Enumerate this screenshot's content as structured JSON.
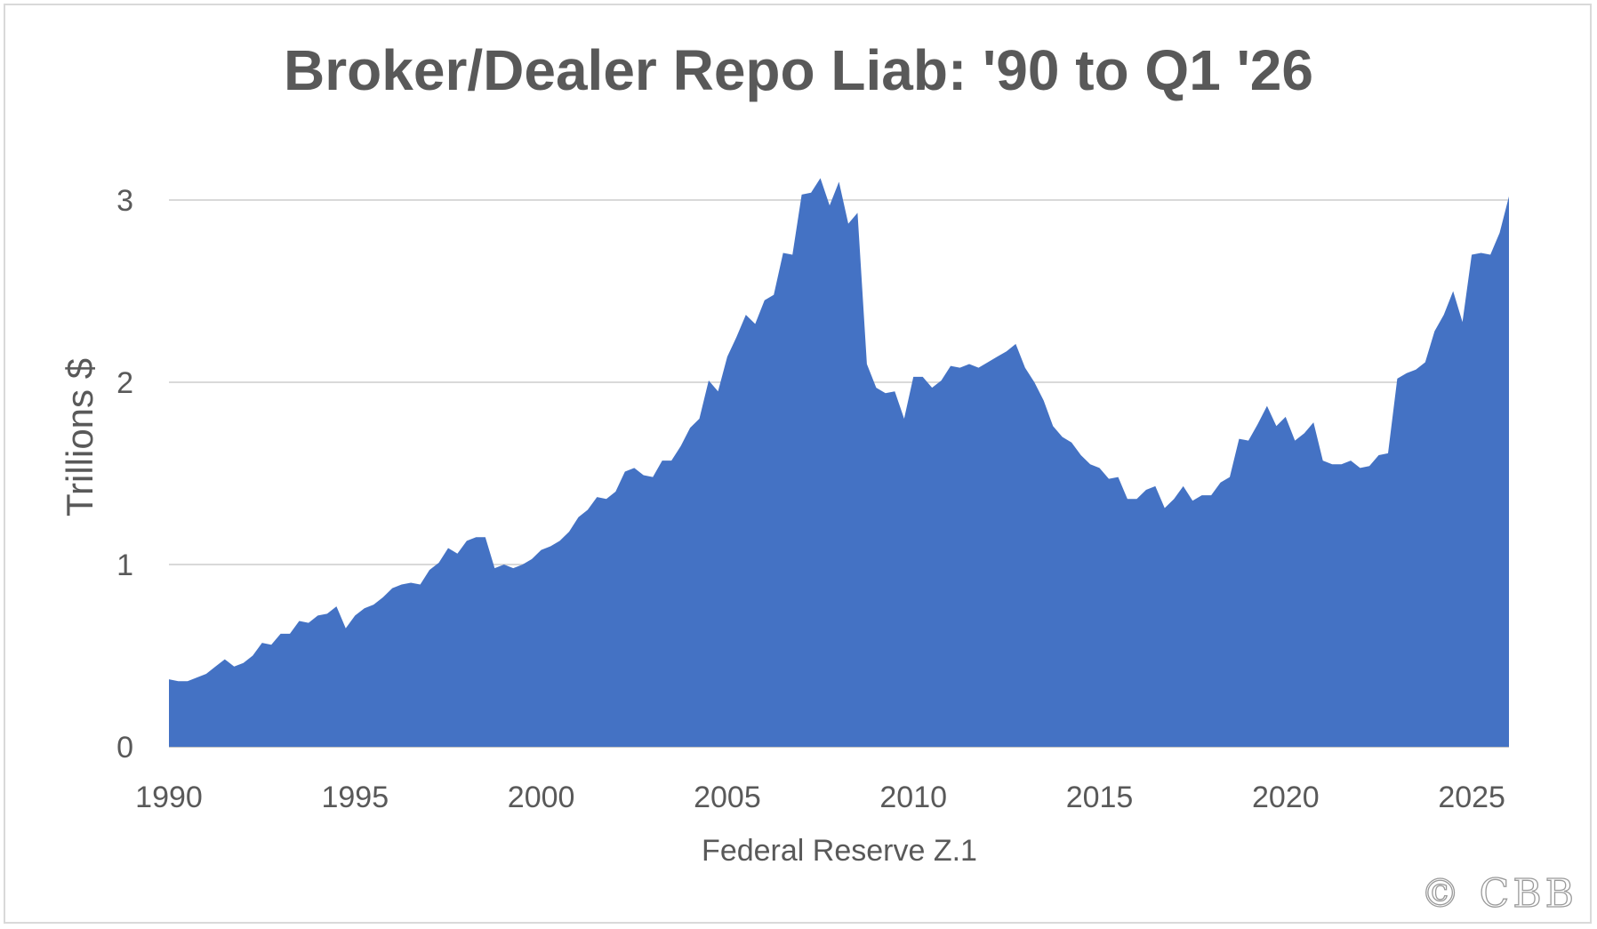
{
  "chart_data": {
    "type": "area",
    "title": "Broker/Dealer Repo Liab: '90 to Q1 '26",
    "xlabel": "Federal Reserve Z.1",
    "ylabel": "Trillions $",
    "xlim": [
      1990,
      2026
    ],
    "ylim": [
      0,
      3.3
    ],
    "x_ticks": [
      "1990",
      "1995",
      "2000",
      "2005",
      "2010",
      "2015",
      "2020",
      "2025"
    ],
    "y_ticks": [
      "0",
      "1",
      "2",
      "3"
    ],
    "grid": "horizontal",
    "color": "#4472C4",
    "series": [
      {
        "x": [
          1990.0,
          1990.25,
          1990.5,
          1990.75,
          1991.0,
          1991.25,
          1991.5,
          1991.75,
          1992.0,
          1992.25,
          1992.5,
          1992.75,
          1993.0,
          1993.25,
          1993.5,
          1993.75,
          1994.0,
          1994.25,
          1994.5,
          1994.75,
          1995.0,
          1995.25,
          1995.5,
          1995.75,
          1996.0,
          1996.25,
          1996.5,
          1996.75,
          1997.0,
          1997.25,
          1997.5,
          1997.75,
          1998.0,
          1998.25,
          1998.5,
          1998.75,
          1999.0,
          1999.25,
          1999.5,
          1999.75,
          2000.0,
          2000.25,
          2000.5,
          2000.75,
          2001.0,
          2001.25,
          2001.5,
          2001.75,
          2002.0,
          2002.25,
          2002.5,
          2002.75,
          2003.0,
          2003.25,
          2003.5,
          2003.75,
          2004.0,
          2004.25,
          2004.5,
          2004.75,
          2005.0,
          2005.25,
          2005.5,
          2005.75,
          2006.0,
          2006.25,
          2006.5,
          2006.75,
          2007.0,
          2007.25,
          2007.5,
          2007.75,
          2008.0,
          2008.25,
          2008.5,
          2008.75,
          2009.0,
          2009.25,
          2009.5,
          2009.75,
          2010.0,
          2010.25,
          2010.5,
          2010.75,
          2011.0,
          2011.25,
          2011.5,
          2011.75,
          2012.0,
          2012.25,
          2012.5,
          2012.75,
          2013.0,
          2013.25,
          2013.5,
          2013.75,
          2014.0,
          2014.25,
          2014.5,
          2014.75,
          2015.0,
          2015.25,
          2015.5,
          2015.75,
          2016.0,
          2016.25,
          2016.5,
          2016.75,
          2017.0,
          2017.25,
          2017.5,
          2017.75,
          2018.0,
          2018.25,
          2018.5,
          2018.75,
          2019.0,
          2019.25,
          2019.5,
          2019.75,
          2020.0,
          2020.25,
          2020.5,
          2020.75,
          2021.0,
          2021.25,
          2021.5,
          2021.75,
          2022.0,
          2022.25,
          2022.5,
          2022.75,
          2023.0,
          2023.25,
          2023.5,
          2023.75,
          2024.0,
          2024.25,
          2024.5,
          2024.75,
          2025.0,
          2025.25,
          2025.5,
          2025.75,
          2026.0
        ],
        "values": [
          0.37,
          0.36,
          0.36,
          0.38,
          0.4,
          0.44,
          0.48,
          0.44,
          0.46,
          0.5,
          0.57,
          0.56,
          0.62,
          0.62,
          0.69,
          0.68,
          0.72,
          0.73,
          0.77,
          0.65,
          0.72,
          0.76,
          0.78,
          0.82,
          0.87,
          0.89,
          0.9,
          0.89,
          0.97,
          1.01,
          1.09,
          1.06,
          1.13,
          1.15,
          1.15,
          0.98,
          1.0,
          0.98,
          1.0,
          1.03,
          1.08,
          1.1,
          1.13,
          1.18,
          1.26,
          1.3,
          1.37,
          1.36,
          1.4,
          1.51,
          1.53,
          1.49,
          1.48,
          1.57,
          1.57,
          1.65,
          1.75,
          1.8,
          2.01,
          1.95,
          2.14,
          2.25,
          2.37,
          2.32,
          2.45,
          2.48,
          2.71,
          2.7,
          3.03,
          3.04,
          3.12,
          2.97,
          3.1,
          2.87,
          2.93,
          2.1,
          1.97,
          1.94,
          1.95,
          1.8,
          2.03,
          2.03,
          1.97,
          2.01,
          2.09,
          2.08,
          2.1,
          2.08,
          2.11,
          2.14,
          2.17,
          2.21,
          2.08,
          2.0,
          1.9,
          1.76,
          1.7,
          1.67,
          1.6,
          1.55,
          1.53,
          1.47,
          1.48,
          1.36,
          1.36,
          1.41,
          1.43,
          1.31,
          1.36,
          1.43,
          1.35,
          1.38,
          1.38,
          1.45,
          1.48,
          1.69,
          1.68,
          1.77,
          1.87,
          1.76,
          1.81,
          1.68,
          1.72,
          1.78,
          1.57,
          1.55,
          1.55,
          1.57,
          1.53,
          1.54,
          1.6,
          1.61,
          2.02,
          2.05,
          2.07,
          2.11,
          2.28,
          2.37,
          2.5,
          2.33,
          2.7,
          2.71,
          2.7,
          2.82,
          3.02
        ]
      }
    ]
  },
  "credit": "© CBB"
}
